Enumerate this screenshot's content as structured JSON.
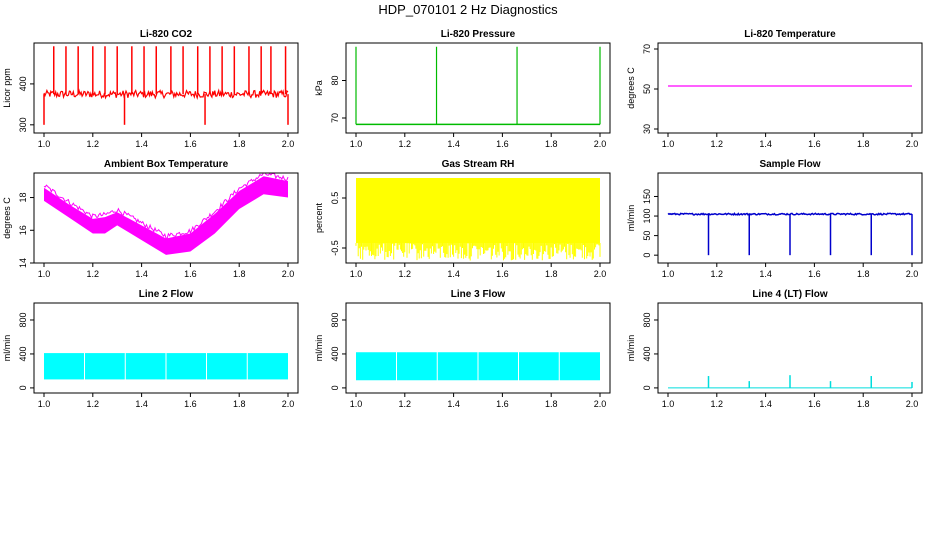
{
  "figure": {
    "title": "HDP_070101  2 Hz Diagnostics"
  },
  "chart_data": [
    {
      "id": "p1",
      "type": "line",
      "title": "Li-820 CO2",
      "ylabel": "Licor ppm",
      "color": "#ff0000",
      "xlim": [
        1.0,
        2.0
      ],
      "xticks": [
        "1.0",
        "1.2",
        "1.4",
        "1.6",
        "1.8",
        "2.0"
      ],
      "ylim": [
        280,
        500
      ],
      "yticks": [
        "300",
        "400"
      ],
      "ytick_values": [
        300,
        400
      ],
      "baseline": 375,
      "spikes_up": [
        1.04,
        1.09,
        1.14,
        1.2,
        1.25,
        1.3,
        1.36,
        1.41,
        1.46,
        1.52,
        1.57,
        1.63,
        1.68,
        1.73,
        1.78,
        1.84,
        1.89,
        1.93,
        1.99
      ],
      "spikes_up_value": 492,
      "spikes_down": [
        1.0,
        1.33,
        1.66,
        2.0
      ],
      "spikes_down_value": 300
    },
    {
      "id": "p2",
      "type": "line",
      "title": "Li-820 Pressure",
      "ylabel": "kPa",
      "color": "#00bb00",
      "xlim": [
        1.0,
        2.0
      ],
      "xticks": [
        "1.0",
        "1.2",
        "1.4",
        "1.6",
        "1.8",
        "2.0"
      ],
      "ylim": [
        66,
        90
      ],
      "yticks": [
        "70",
        "80"
      ],
      "ytick_values": [
        70,
        80
      ],
      "baseline": 68.3,
      "spikes_up": [
        1.0,
        1.33,
        1.66,
        2.0
      ],
      "spikes_up_value": 89
    },
    {
      "id": "p3",
      "type": "line",
      "title": "Li-820 Temperature",
      "ylabel": "degrees C",
      "color": "#ff00ff",
      "xlim": [
        1.0,
        2.0
      ],
      "xticks": [
        "1.0",
        "1.2",
        "1.4",
        "1.6",
        "1.8",
        "2.0"
      ],
      "ylim": [
        28,
        73
      ],
      "yticks": [
        "30",
        "50",
        "70"
      ],
      "ytick_values": [
        30,
        50,
        70
      ],
      "baseline": 51.5
    },
    {
      "id": "p4",
      "type": "area",
      "title": "Ambient Box Temperature",
      "ylabel": "degrees C",
      "color": "#ff00ff",
      "xlim": [
        1.0,
        2.0
      ],
      "xticks": [
        "1.0",
        "1.2",
        "1.4",
        "1.6",
        "1.8",
        "2.0"
      ],
      "ylim": [
        14,
        19.5
      ],
      "yticks": [
        "14",
        "16",
        "18"
      ],
      "ytick_values": [
        14,
        16,
        18
      ],
      "x": [
        1.0,
        1.1,
        1.2,
        1.25,
        1.3,
        1.4,
        1.5,
        1.6,
        1.7,
        1.8,
        1.9,
        2.0
      ],
      "low": [
        17.8,
        16.8,
        15.8,
        15.8,
        16.3,
        15.4,
        14.5,
        14.7,
        15.8,
        17.3,
        18.2,
        18.0
      ],
      "high": [
        18.6,
        17.6,
        16.7,
        16.8,
        17.1,
        16.3,
        15.5,
        15.8,
        17.0,
        18.4,
        19.3,
        19.0
      ]
    },
    {
      "id": "p5",
      "type": "area",
      "title": "Gas Stream RH",
      "ylabel": "percent",
      "color": "#ffff00",
      "xlim": [
        1.0,
        2.0
      ],
      "xticks": [
        "1.0",
        "1.2",
        "1.4",
        "1.6",
        "1.8",
        "2.0"
      ],
      "ylim": [
        -0.8,
        1.0
      ],
      "yticks": [
        "-0.5",
        "0.5"
      ],
      "ytick_values": [
        -0.5,
        0.5
      ],
      "band_low": -0.4,
      "band_high": 0.9
    },
    {
      "id": "p6",
      "type": "line",
      "title": "Sample Flow",
      "ylabel": "ml/min",
      "color": "#0000cc",
      "xlim": [
        1.0,
        2.0
      ],
      "xticks": [
        "1.0",
        "1.2",
        "1.4",
        "1.6",
        "1.8",
        "2.0"
      ],
      "ylim": [
        -20,
        210
      ],
      "yticks": [
        "0",
        "50",
        "100",
        "150"
      ],
      "ytick_values": [
        0,
        50,
        100,
        150
      ],
      "baseline": 105,
      "spikes_down": [
        1.166,
        1.333,
        1.5,
        1.666,
        1.833,
        2.0
      ],
      "spikes_down_value": 0
    },
    {
      "id": "p7",
      "type": "area",
      "title": "Line 2 Flow",
      "ylabel": "ml/min",
      "color": "#00ffff",
      "xlim": [
        1.0,
        2.0
      ],
      "xticks": [
        "1.0",
        "1.2",
        "1.4",
        "1.6",
        "1.8",
        "2.0"
      ],
      "ylim": [
        -60,
        1000
      ],
      "yticks": [
        "0",
        "400",
        "800"
      ],
      "ytick_values": [
        0,
        400,
        800
      ],
      "band_low": 100,
      "band_high": 410,
      "gaps": [
        1.166,
        1.333,
        1.5,
        1.666,
        1.833
      ]
    },
    {
      "id": "p8",
      "type": "area",
      "title": "Line 3 Flow",
      "ylabel": "ml/min",
      "color": "#00ffff",
      "xlim": [
        1.0,
        2.0
      ],
      "xticks": [
        "1.0",
        "1.2",
        "1.4",
        "1.6",
        "1.8",
        "2.0"
      ],
      "ylim": [
        -60,
        1000
      ],
      "yticks": [
        "0",
        "400",
        "800"
      ],
      "ytick_values": [
        0,
        400,
        800
      ],
      "band_low": 90,
      "band_high": 420,
      "gaps": [
        1.166,
        1.333,
        1.5,
        1.666,
        1.833
      ]
    },
    {
      "id": "p9",
      "type": "line",
      "title": "Line 4 (LT) Flow",
      "ylabel": "ml/min",
      "color": "#00dddd",
      "xlim": [
        1.0,
        2.0
      ],
      "xticks": [
        "1.0",
        "1.2",
        "1.4",
        "1.6",
        "1.8",
        "2.0"
      ],
      "ylim": [
        -60,
        1000
      ],
      "yticks": [
        "0",
        "400",
        "800"
      ],
      "ytick_values": [
        0,
        400,
        800
      ],
      "baseline": 0,
      "spikes_up": [
        1.166,
        1.333,
        1.5,
        1.666,
        1.833,
        2.0
      ],
      "spikes_up_values": [
        140,
        80,
        150,
        80,
        140,
        70
      ]
    }
  ]
}
